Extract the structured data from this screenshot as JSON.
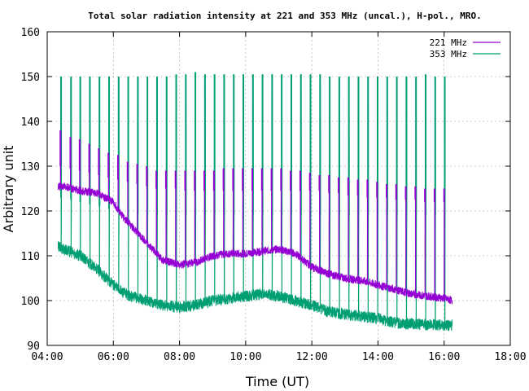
{
  "chart_data": {
    "type": "line",
    "title": "Total solar radiation intensity at 221 and 353 MHz (uncal.), H-pol., MRO.",
    "xlabel": "Time (UT)",
    "ylabel": "Arbitrary unit",
    "x_unit": "hours UT",
    "xlim": [
      4,
      18
    ],
    "ylim": [
      90,
      160
    ],
    "x_ticks": [
      4,
      6,
      8,
      10,
      12,
      14,
      16,
      18
    ],
    "x_tick_labels": [
      "04:00",
      "06:00",
      "08:00",
      "10:00",
      "12:00",
      "14:00",
      "16:00",
      "18:00"
    ],
    "y_ticks": [
      90,
      100,
      110,
      120,
      130,
      140,
      150,
      160
    ],
    "y_tick_labels": [
      "90",
      "100",
      "110",
      "120",
      "130",
      "140",
      "150",
      "160"
    ],
    "grid": true,
    "legend_position": "top-right",
    "series": [
      {
        "name": "221 MHz",
        "color": "#9400d3",
        "x": [
          4.33,
          4.5,
          5.0,
          5.5,
          6.0,
          6.25,
          6.5,
          7.0,
          7.5,
          8.0,
          8.5,
          9.0,
          9.5,
          10.0,
          10.5,
          11.0,
          11.5,
          12.0,
          12.5,
          13.0,
          13.5,
          14.0,
          14.5,
          15.0,
          15.5,
          16.0,
          16.25
        ],
        "values": [
          125.5,
          125.5,
          124.5,
          124.0,
          122.0,
          119.0,
          117.0,
          113.0,
          109.0,
          108.0,
          108.5,
          110.0,
          110.5,
          110.5,
          111.0,
          111.5,
          110.5,
          107.5,
          106.0,
          105.0,
          104.5,
          103.5,
          102.5,
          101.5,
          101.0,
          100.5,
          100.0
        ],
        "calibration_pulses": {
          "x": [
            4.4,
            4.7,
            4.98,
            5.27,
            5.56,
            5.85,
            6.14,
            6.43,
            6.72,
            7.01,
            7.3,
            7.59,
            7.88,
            8.17,
            8.46,
            8.75,
            9.04,
            9.33,
            9.62,
            9.91,
            10.2,
            10.49,
            10.78,
            11.07,
            11.36,
            11.65,
            11.94,
            12.23,
            12.52,
            12.81,
            13.1,
            13.39,
            13.68,
            13.97,
            14.26,
            14.55,
            14.84,
            15.13,
            15.42,
            15.71,
            16.0
          ],
          "high": [
            138,
            136.5,
            136,
            135,
            134,
            133,
            132.5,
            131,
            130.5,
            130,
            129,
            129,
            129,
            129,
            129,
            129,
            129,
            129.5,
            129.5,
            129.5,
            129.5,
            129.5,
            129.5,
            129.5,
            129,
            129,
            128.5,
            128,
            128,
            127.5,
            127.5,
            127,
            127,
            126.5,
            126,
            126,
            125.5,
            125.5,
            125,
            125,
            125
          ],
          "low": [
            130,
            129.5,
            129,
            128.5,
            128,
            127.5,
            127,
            126.5,
            126,
            125.5,
            125,
            125,
            125,
            124.5,
            124.5,
            124.5,
            124.5,
            124.5,
            124.5,
            124.5,
            124.5,
            124.5,
            124.5,
            124.5,
            124.5,
            124.5,
            124.5,
            124.5,
            124,
            124,
            123.5,
            123.5,
            123,
            123,
            123,
            122.5,
            122.5,
            122.5,
            122,
            122,
            122
          ]
        }
      },
      {
        "name": "353 MHz",
        "color": "#009e73",
        "x": [
          4.33,
          4.5,
          5.0,
          5.5,
          6.0,
          6.25,
          6.5,
          7.0,
          7.5,
          8.0,
          8.5,
          9.0,
          9.5,
          10.0,
          10.5,
          11.0,
          11.5,
          12.0,
          12.5,
          13.0,
          13.5,
          14.0,
          14.5,
          15.0,
          15.5,
          16.0,
          16.25
        ],
        "values": [
          112.0,
          111.5,
          110.0,
          107.0,
          103.5,
          102.0,
          101.0,
          100.0,
          99.0,
          98.5,
          99.0,
          100.0,
          100.5,
          101.0,
          101.5,
          101.0,
          100.0,
          99.0,
          97.5,
          97.0,
          96.5,
          96.0,
          95.0,
          94.8,
          94.6,
          94.5,
          94.5
        ],
        "calibration_pulses": {
          "x": [
            4.42,
            4.72,
            5.0,
            5.29,
            5.58,
            5.87,
            6.16,
            6.45,
            6.74,
            7.03,
            7.32,
            7.61,
            7.9,
            8.19,
            8.48,
            8.77,
            9.06,
            9.35,
            9.64,
            9.93,
            10.22,
            10.51,
            10.8,
            11.09,
            11.38,
            11.67,
            11.96,
            12.25,
            12.54,
            12.83,
            13.12,
            13.41,
            13.7,
            13.99,
            14.28,
            14.57,
            14.86,
            15.15,
            15.44,
            15.73,
            16.02
          ],
          "high": [
            150,
            150,
            150,
            150,
            150,
            150,
            150,
            150,
            150,
            150,
            150,
            150,
            150.5,
            150.5,
            151,
            150.5,
            150.5,
            150.5,
            150.5,
            150.5,
            150.5,
            150.5,
            150.5,
            150.5,
            150.5,
            150.5,
            150.5,
            150.5,
            150,
            150,
            150,
            150,
            150,
            150,
            150,
            150,
            150,
            150,
            150.5,
            150,
            150
          ],
          "low": [
            123,
            122.5,
            122,
            121.5,
            121,
            120.5,
            120,
            119.5,
            119.5,
            119,
            119,
            119,
            119,
            119,
            119,
            119,
            119,
            119,
            119,
            119,
            119,
            119,
            119,
            119,
            119,
            119,
            119,
            119,
            119,
            119,
            119,
            119,
            119,
            119,
            119,
            119,
            119,
            119,
            119,
            119,
            119
          ]
        }
      }
    ]
  }
}
